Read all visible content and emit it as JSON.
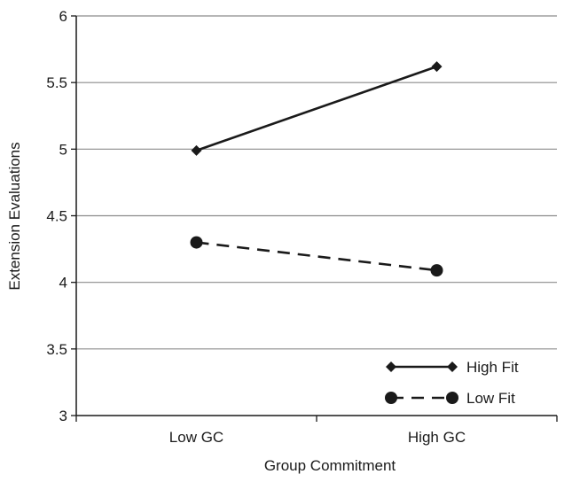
{
  "chart_data": {
    "type": "line",
    "title": "",
    "xlabel": "Group Commitment",
    "ylabel": "Extension Evaluations",
    "categories": [
      "Low GC",
      "High GC"
    ],
    "ylim": [
      3,
      6
    ],
    "yticks": [
      "3",
      "3.5",
      "4",
      "4.5",
      "5",
      "5.5",
      "6"
    ],
    "grid": "horizontal",
    "legend_position": "bottom-right",
    "series": [
      {
        "name": "High Fit",
        "values": [
          4.99,
          5.62
        ],
        "line_style": "solid",
        "marker": "diamond",
        "color": "#1a1a1a"
      },
      {
        "name": "Low Fit",
        "values": [
          4.3,
          4.09
        ],
        "line_style": "dashed",
        "marker": "circle",
        "color": "#1a1a1a"
      }
    ]
  }
}
